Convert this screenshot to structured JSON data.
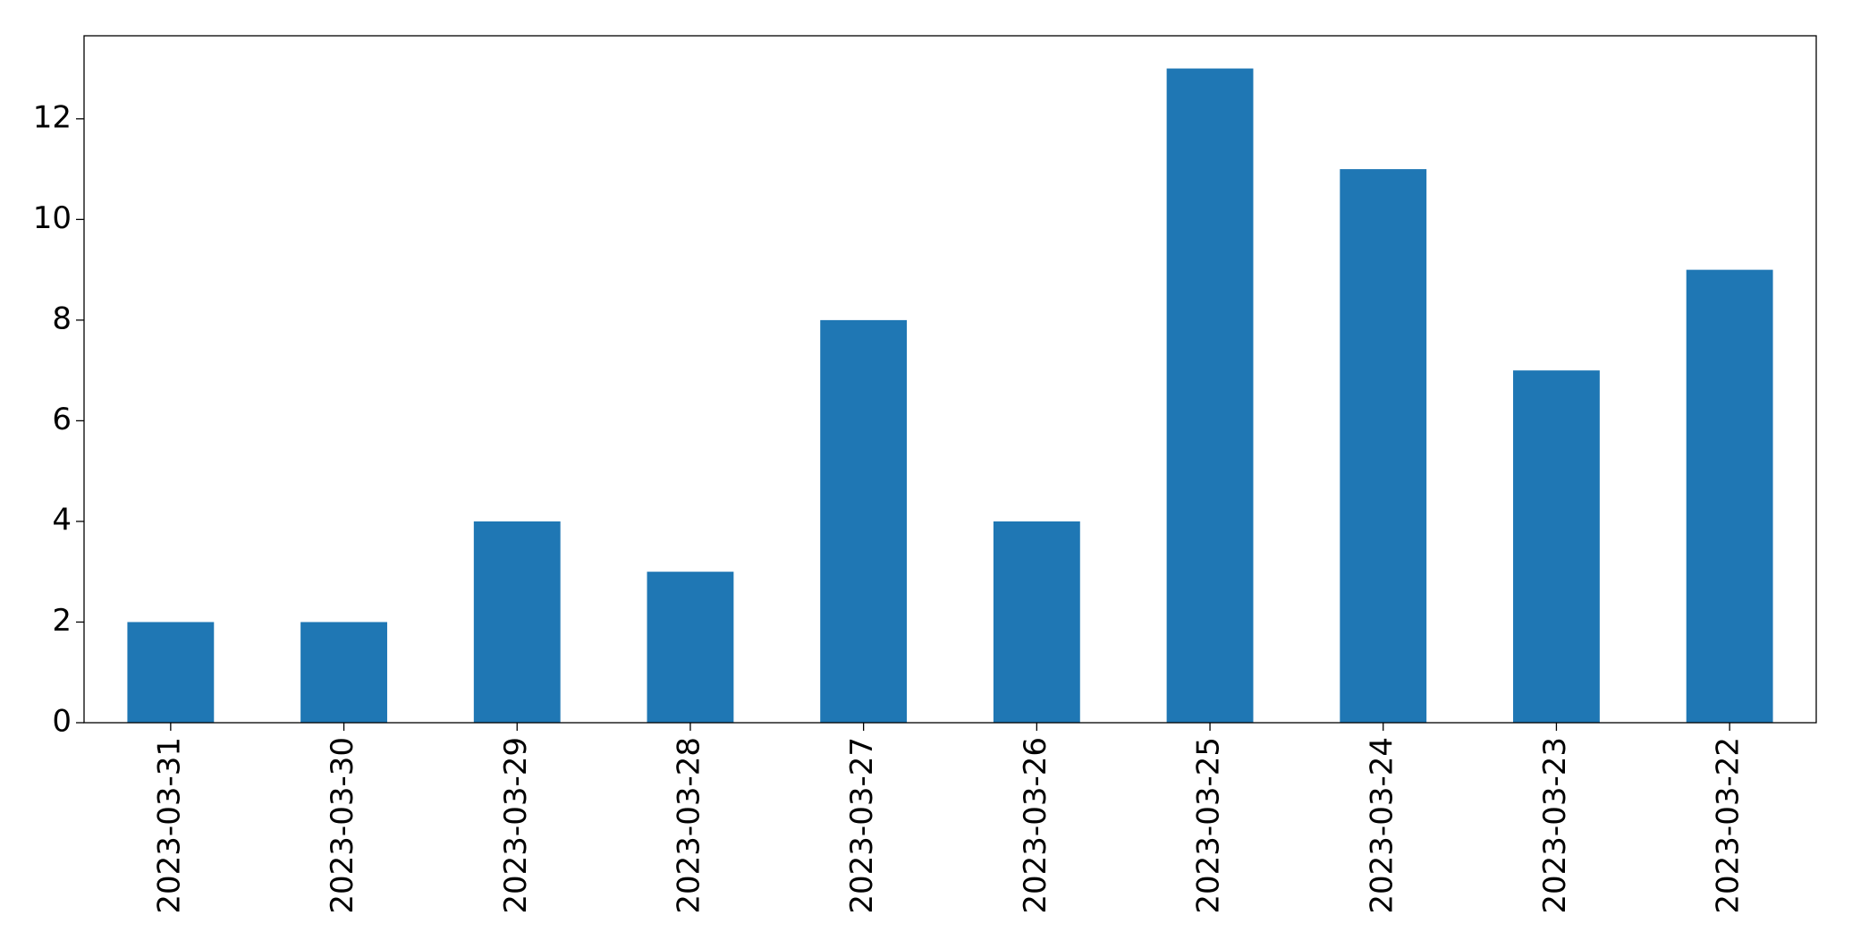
{
  "chart_data": {
    "type": "bar",
    "categories": [
      "2023-03-31",
      "2023-03-30",
      "2023-03-29",
      "2023-03-28",
      "2023-03-27",
      "2023-03-26",
      "2023-03-25",
      "2023-03-24",
      "2023-03-23",
      "2023-03-22"
    ],
    "values": [
      2,
      2,
      4,
      3,
      8,
      4,
      13,
      11,
      7,
      9
    ],
    "color": "#1f77b4",
    "ylim": [
      0,
      13.65
    ],
    "yticks": [
      0,
      2,
      4,
      6,
      8,
      10,
      12
    ],
    "grid": false
  }
}
